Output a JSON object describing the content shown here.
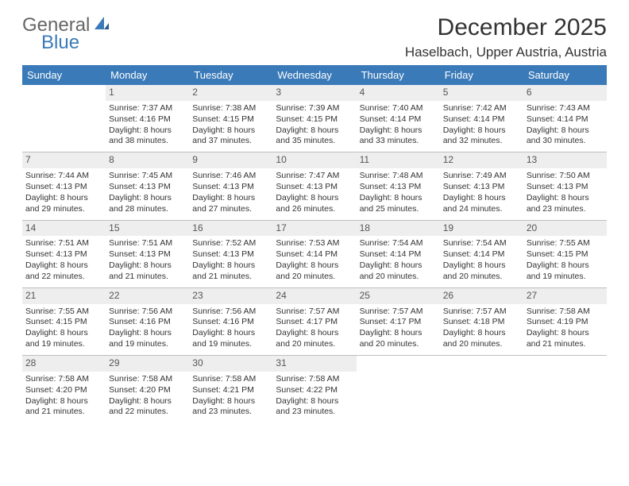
{
  "logo": {
    "word1": "General",
    "word2": "Blue"
  },
  "title": "December 2025",
  "location": "Haselbach, Upper Austria, Austria",
  "colors": {
    "header_bg": "#3a7ab8",
    "header_text": "#ffffff",
    "daynum_bg": "#eeeeee",
    "cell_border": "#bfbfbf",
    "body_text": "#333333"
  },
  "dayHeaders": [
    "Sunday",
    "Monday",
    "Tuesday",
    "Wednesday",
    "Thursday",
    "Friday",
    "Saturday"
  ],
  "weeks": [
    [
      {
        "day": "",
        "sunrise": "",
        "sunset": "",
        "daylight1": "",
        "daylight2": ""
      },
      {
        "day": "1",
        "sunrise": "Sunrise: 7:37 AM",
        "sunset": "Sunset: 4:16 PM",
        "daylight1": "Daylight: 8 hours",
        "daylight2": "and 38 minutes."
      },
      {
        "day": "2",
        "sunrise": "Sunrise: 7:38 AM",
        "sunset": "Sunset: 4:15 PM",
        "daylight1": "Daylight: 8 hours",
        "daylight2": "and 37 minutes."
      },
      {
        "day": "3",
        "sunrise": "Sunrise: 7:39 AM",
        "sunset": "Sunset: 4:15 PM",
        "daylight1": "Daylight: 8 hours",
        "daylight2": "and 35 minutes."
      },
      {
        "day": "4",
        "sunrise": "Sunrise: 7:40 AM",
        "sunset": "Sunset: 4:14 PM",
        "daylight1": "Daylight: 8 hours",
        "daylight2": "and 33 minutes."
      },
      {
        "day": "5",
        "sunrise": "Sunrise: 7:42 AM",
        "sunset": "Sunset: 4:14 PM",
        "daylight1": "Daylight: 8 hours",
        "daylight2": "and 32 minutes."
      },
      {
        "day": "6",
        "sunrise": "Sunrise: 7:43 AM",
        "sunset": "Sunset: 4:14 PM",
        "daylight1": "Daylight: 8 hours",
        "daylight2": "and 30 minutes."
      }
    ],
    [
      {
        "day": "7",
        "sunrise": "Sunrise: 7:44 AM",
        "sunset": "Sunset: 4:13 PM",
        "daylight1": "Daylight: 8 hours",
        "daylight2": "and 29 minutes."
      },
      {
        "day": "8",
        "sunrise": "Sunrise: 7:45 AM",
        "sunset": "Sunset: 4:13 PM",
        "daylight1": "Daylight: 8 hours",
        "daylight2": "and 28 minutes."
      },
      {
        "day": "9",
        "sunrise": "Sunrise: 7:46 AM",
        "sunset": "Sunset: 4:13 PM",
        "daylight1": "Daylight: 8 hours",
        "daylight2": "and 27 minutes."
      },
      {
        "day": "10",
        "sunrise": "Sunrise: 7:47 AM",
        "sunset": "Sunset: 4:13 PM",
        "daylight1": "Daylight: 8 hours",
        "daylight2": "and 26 minutes."
      },
      {
        "day": "11",
        "sunrise": "Sunrise: 7:48 AM",
        "sunset": "Sunset: 4:13 PM",
        "daylight1": "Daylight: 8 hours",
        "daylight2": "and 25 minutes."
      },
      {
        "day": "12",
        "sunrise": "Sunrise: 7:49 AM",
        "sunset": "Sunset: 4:13 PM",
        "daylight1": "Daylight: 8 hours",
        "daylight2": "and 24 minutes."
      },
      {
        "day": "13",
        "sunrise": "Sunrise: 7:50 AM",
        "sunset": "Sunset: 4:13 PM",
        "daylight1": "Daylight: 8 hours",
        "daylight2": "and 23 minutes."
      }
    ],
    [
      {
        "day": "14",
        "sunrise": "Sunrise: 7:51 AM",
        "sunset": "Sunset: 4:13 PM",
        "daylight1": "Daylight: 8 hours",
        "daylight2": "and 22 minutes."
      },
      {
        "day": "15",
        "sunrise": "Sunrise: 7:51 AM",
        "sunset": "Sunset: 4:13 PM",
        "daylight1": "Daylight: 8 hours",
        "daylight2": "and 21 minutes."
      },
      {
        "day": "16",
        "sunrise": "Sunrise: 7:52 AM",
        "sunset": "Sunset: 4:13 PM",
        "daylight1": "Daylight: 8 hours",
        "daylight2": "and 21 minutes."
      },
      {
        "day": "17",
        "sunrise": "Sunrise: 7:53 AM",
        "sunset": "Sunset: 4:14 PM",
        "daylight1": "Daylight: 8 hours",
        "daylight2": "and 20 minutes."
      },
      {
        "day": "18",
        "sunrise": "Sunrise: 7:54 AM",
        "sunset": "Sunset: 4:14 PM",
        "daylight1": "Daylight: 8 hours",
        "daylight2": "and 20 minutes."
      },
      {
        "day": "19",
        "sunrise": "Sunrise: 7:54 AM",
        "sunset": "Sunset: 4:14 PM",
        "daylight1": "Daylight: 8 hours",
        "daylight2": "and 20 minutes."
      },
      {
        "day": "20",
        "sunrise": "Sunrise: 7:55 AM",
        "sunset": "Sunset: 4:15 PM",
        "daylight1": "Daylight: 8 hours",
        "daylight2": "and 19 minutes."
      }
    ],
    [
      {
        "day": "21",
        "sunrise": "Sunrise: 7:55 AM",
        "sunset": "Sunset: 4:15 PM",
        "daylight1": "Daylight: 8 hours",
        "daylight2": "and 19 minutes."
      },
      {
        "day": "22",
        "sunrise": "Sunrise: 7:56 AM",
        "sunset": "Sunset: 4:16 PM",
        "daylight1": "Daylight: 8 hours",
        "daylight2": "and 19 minutes."
      },
      {
        "day": "23",
        "sunrise": "Sunrise: 7:56 AM",
        "sunset": "Sunset: 4:16 PM",
        "daylight1": "Daylight: 8 hours",
        "daylight2": "and 19 minutes."
      },
      {
        "day": "24",
        "sunrise": "Sunrise: 7:57 AM",
        "sunset": "Sunset: 4:17 PM",
        "daylight1": "Daylight: 8 hours",
        "daylight2": "and 20 minutes."
      },
      {
        "day": "25",
        "sunrise": "Sunrise: 7:57 AM",
        "sunset": "Sunset: 4:17 PM",
        "daylight1": "Daylight: 8 hours",
        "daylight2": "and 20 minutes."
      },
      {
        "day": "26",
        "sunrise": "Sunrise: 7:57 AM",
        "sunset": "Sunset: 4:18 PM",
        "daylight1": "Daylight: 8 hours",
        "daylight2": "and 20 minutes."
      },
      {
        "day": "27",
        "sunrise": "Sunrise: 7:58 AM",
        "sunset": "Sunset: 4:19 PM",
        "daylight1": "Daylight: 8 hours",
        "daylight2": "and 21 minutes."
      }
    ],
    [
      {
        "day": "28",
        "sunrise": "Sunrise: 7:58 AM",
        "sunset": "Sunset: 4:20 PM",
        "daylight1": "Daylight: 8 hours",
        "daylight2": "and 21 minutes."
      },
      {
        "day": "29",
        "sunrise": "Sunrise: 7:58 AM",
        "sunset": "Sunset: 4:20 PM",
        "daylight1": "Daylight: 8 hours",
        "daylight2": "and 22 minutes."
      },
      {
        "day": "30",
        "sunrise": "Sunrise: 7:58 AM",
        "sunset": "Sunset: 4:21 PM",
        "daylight1": "Daylight: 8 hours",
        "daylight2": "and 23 minutes."
      },
      {
        "day": "31",
        "sunrise": "Sunrise: 7:58 AM",
        "sunset": "Sunset: 4:22 PM",
        "daylight1": "Daylight: 8 hours",
        "daylight2": "and 23 minutes."
      },
      {
        "day": "",
        "sunrise": "",
        "sunset": "",
        "daylight1": "",
        "daylight2": ""
      },
      {
        "day": "",
        "sunrise": "",
        "sunset": "",
        "daylight1": "",
        "daylight2": ""
      },
      {
        "day": "",
        "sunrise": "",
        "sunset": "",
        "daylight1": "",
        "daylight2": ""
      }
    ]
  ]
}
